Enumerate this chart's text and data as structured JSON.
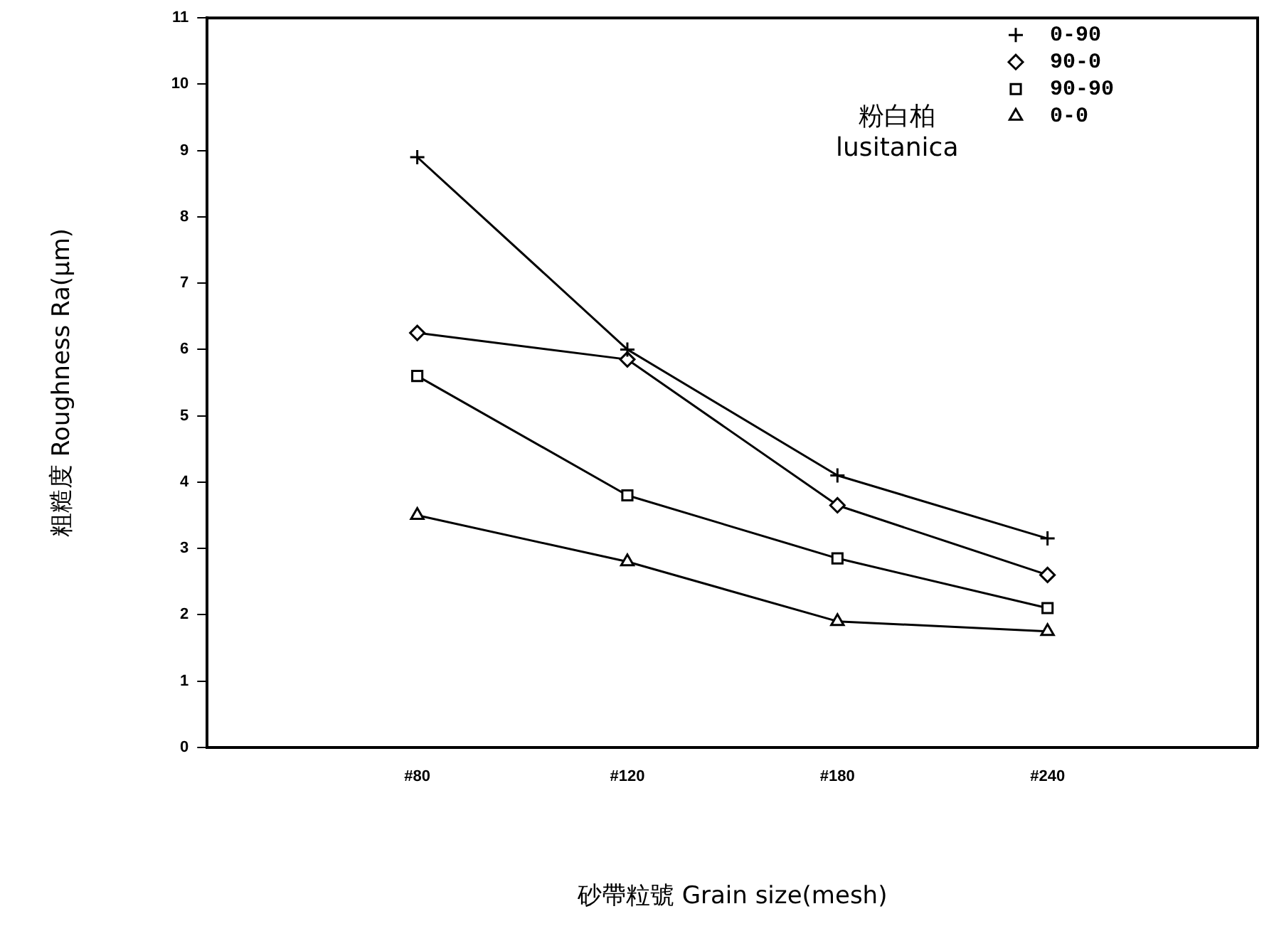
{
  "chart_data": {
    "type": "line",
    "xlabel": "砂帶粒號 Grain size(mesh)",
    "ylabel": "粗糙度 Roughness Ra(μm)",
    "annotations": [
      "粉白柏",
      "lusitanica"
    ],
    "categories": [
      null,
      "#80",
      "#120",
      "#180",
      "#240",
      null
    ],
    "ylim": [
      0,
      11
    ],
    "yticks": [
      0,
      1,
      2,
      3,
      4,
      5,
      6,
      7,
      8,
      9,
      10,
      11
    ],
    "grid": false,
    "legend": "top right",
    "line_style": "solid",
    "series": [
      {
        "name": "0-90",
        "color": "#000000",
        "marker": "cross",
        "values": [
          null,
          8.9,
          6.0,
          4.1,
          3.15,
          null
        ]
      },
      {
        "name": "90-0",
        "color": "#000000",
        "marker": "diamond",
        "values": [
          null,
          6.25,
          5.85,
          3.65,
          2.6,
          null
        ]
      },
      {
        "name": "90-90",
        "color": "#000000",
        "marker": "square",
        "values": [
          null,
          5.6,
          3.8,
          2.85,
          2.1,
          null
        ]
      },
      {
        "name": "0-0",
        "color": "#000000",
        "marker": "triangle",
        "values": [
          null,
          3.5,
          2.8,
          1.9,
          1.75,
          null
        ]
      }
    ]
  }
}
